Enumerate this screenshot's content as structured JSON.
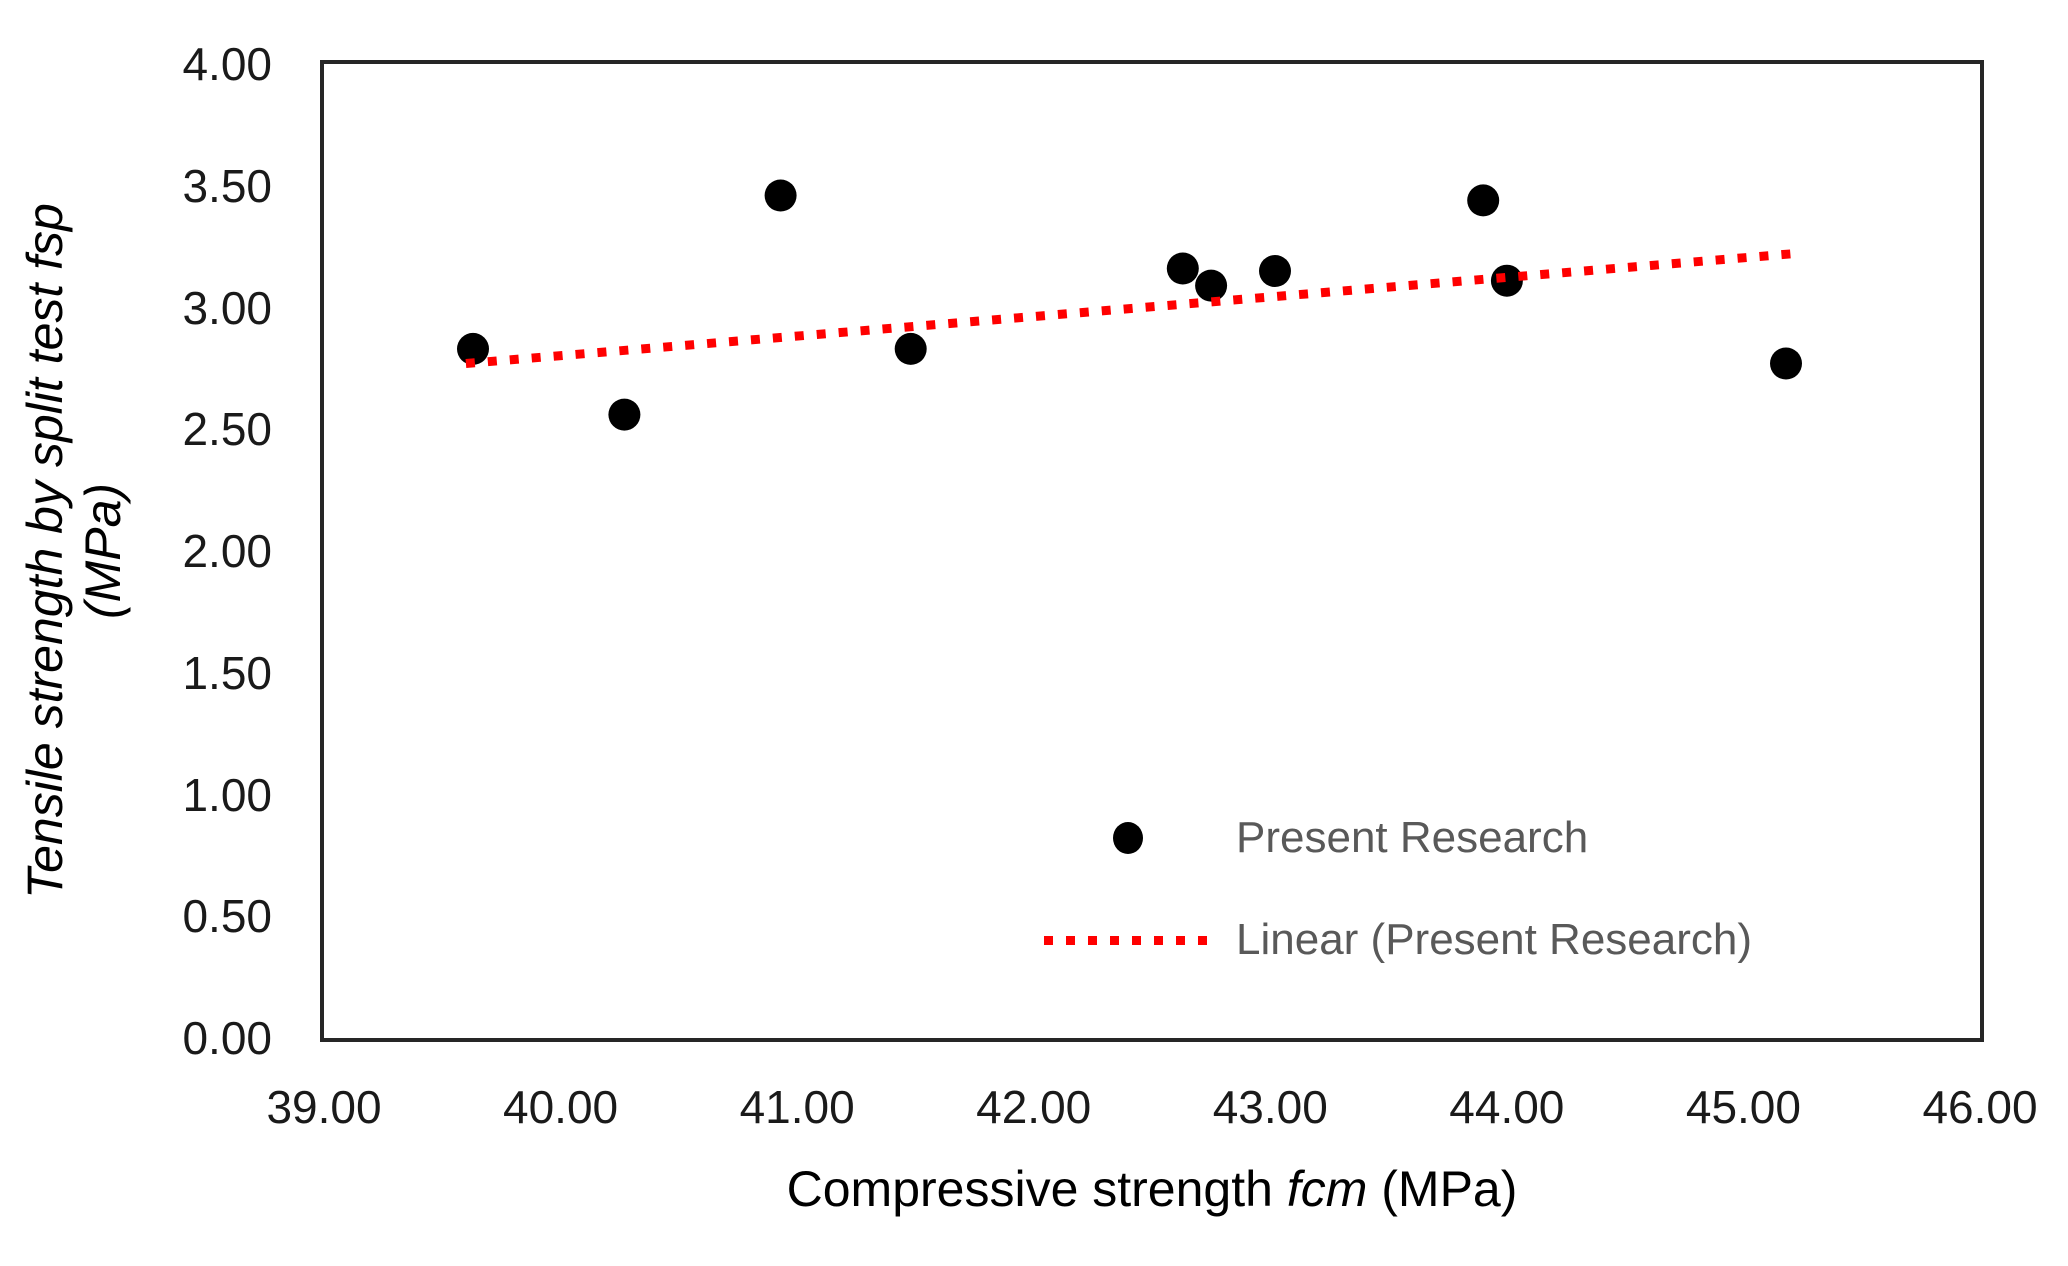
{
  "chart_data": {
    "type": "scatter",
    "title": "",
    "xlabel_prefix": "Compressive strength ",
    "xlabel_italic": "fcm",
    "xlabel_suffix": " (MPa)",
    "ylabel_line1": "Tensile strength by split test fsp",
    "ylabel_line2": "(MPa)",
    "xlim": [
      39,
      46
    ],
    "ylim": [
      0,
      4
    ],
    "x_ticks": [
      "39.00",
      "40.00",
      "41.00",
      "42.00",
      "43.00",
      "44.00",
      "45.00",
      "46.00"
    ],
    "y_ticks": [
      "0.00",
      "0.50",
      "1.00",
      "1.50",
      "2.00",
      "2.50",
      "3.00",
      "3.50",
      "4.00"
    ],
    "grid": false,
    "legend_position": "inside-bottom-right",
    "series": [
      {
        "name": "Present Research",
        "type": "scatter",
        "marker": "dot",
        "color": "#000000",
        "points": [
          [
            39.63,
            2.83
          ],
          [
            40.27,
            2.56
          ],
          [
            40.93,
            3.46
          ],
          [
            41.48,
            2.83
          ],
          [
            42.63,
            3.16
          ],
          [
            42.75,
            3.09
          ],
          [
            43.02,
            3.15
          ],
          [
            43.9,
            3.44
          ],
          [
            44.0,
            3.11
          ],
          [
            45.18,
            2.77
          ]
        ]
      },
      {
        "name": "Linear (Present Research)",
        "type": "dotted-line",
        "marker": "dotted-line",
        "color": "#FF0000",
        "points": [
          [
            39.6,
            2.77
          ],
          [
            45.2,
            3.22
          ]
        ]
      }
    ]
  },
  "colors": {
    "marker_black": "#000000",
    "trendline_red": "#FF0000",
    "legend_text": "#595959",
    "tick_text": "#1a1a1a",
    "frame": "#262626",
    "background": "#ffffff"
  }
}
